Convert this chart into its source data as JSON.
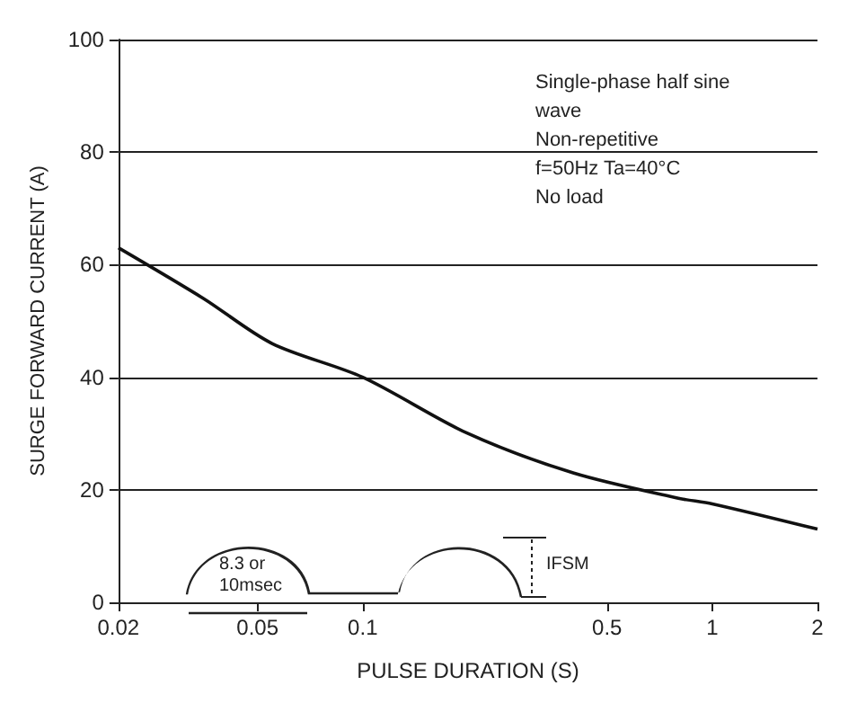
{
  "chart_data": {
    "type": "line",
    "xlabel": "PULSE DURATION (S)",
    "ylabel": "SURGE FORWARD CURRENT (A)",
    "x": [
      0.02,
      0.035,
      0.055,
      0.1,
      0.2,
      0.4,
      0.8,
      1,
      2
    ],
    "series": [
      {
        "color": "#111111",
        "values": [
          63,
          54,
          46,
          40,
          30,
          23,
          18.5,
          17.5,
          13
        ]
      }
    ],
    "log": "x",
    "xlim": [
      0.02,
      2
    ],
    "xticks": [
      0.02,
      0.05,
      0.1,
      0.5,
      1,
      2
    ],
    "ylim": [
      0,
      100
    ],
    "yticks": [
      0,
      20,
      40,
      60,
      80,
      100
    ],
    "grid": "y",
    "marker": "none",
    "line_style": "solid",
    "annotations": [
      "Single-phase half sine wave",
      "Non-repetitive",
      "f=50Hz Ta=40°C",
      "No load",
      "8.3 or 10msec",
      "IFSM"
    ]
  }
}
